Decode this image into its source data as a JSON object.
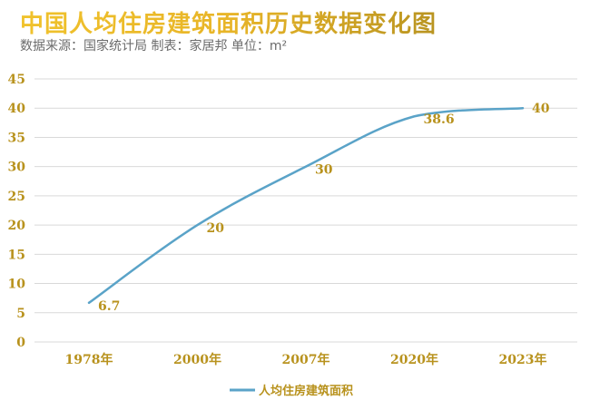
{
  "header": {
    "title": "中国人均住房建筑面积历史数据变化图",
    "subtitle": "数据来源：国家统计局 制表：家居邦 单位：m²"
  },
  "colors": {
    "line": "#5aa3c8",
    "accent": "#b8921d",
    "grid": "#d9d9d9"
  },
  "chart_data": {
    "type": "line",
    "categories": [
      "1978年",
      "2000年",
      "2007年",
      "2020年",
      "2023年"
    ],
    "series": [
      {
        "name": "人均住房建筑面积",
        "values": [
          6.7,
          20,
          30,
          38.6,
          40
        ]
      }
    ],
    "data_labels": [
      "6.7",
      "20",
      "30",
      "38.6",
      "40"
    ],
    "ylim": [
      0,
      45
    ],
    "yticks": [
      0,
      5,
      10,
      15,
      20,
      25,
      30,
      35,
      40,
      45
    ],
    "grid": true,
    "smooth": true,
    "legend": "bottom"
  }
}
